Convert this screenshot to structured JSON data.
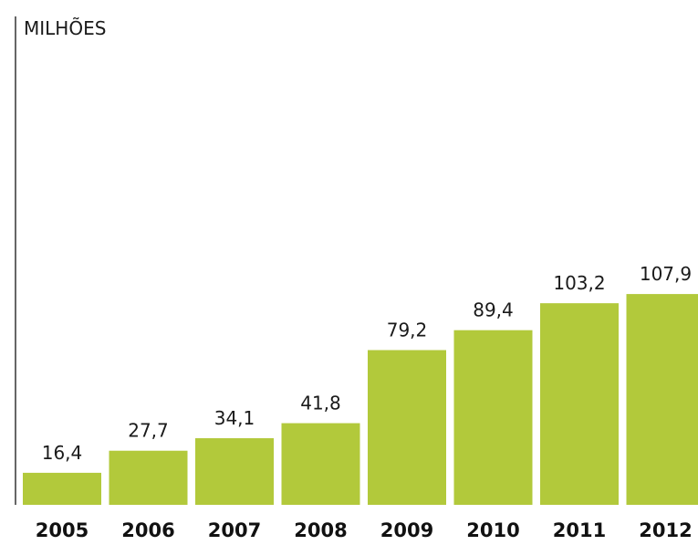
{
  "chart_data": {
    "type": "bar",
    "ylabel": "MILHÕES",
    "categories": [
      "2005",
      "2006",
      "2007",
      "2008",
      "2009",
      "2010",
      "2011",
      "2012"
    ],
    "values": [
      16.4,
      27.7,
      34.1,
      41.8,
      79.2,
      89.4,
      103.2,
      107.9
    ],
    "value_labels": [
      "16,4",
      "27,7",
      "34,1",
      "41,8",
      "79,2",
      "89,4",
      "103,2",
      "107,9"
    ],
    "ylim": [
      0,
      160
    ],
    "grid": false,
    "bar_color": "#b2c93b"
  }
}
